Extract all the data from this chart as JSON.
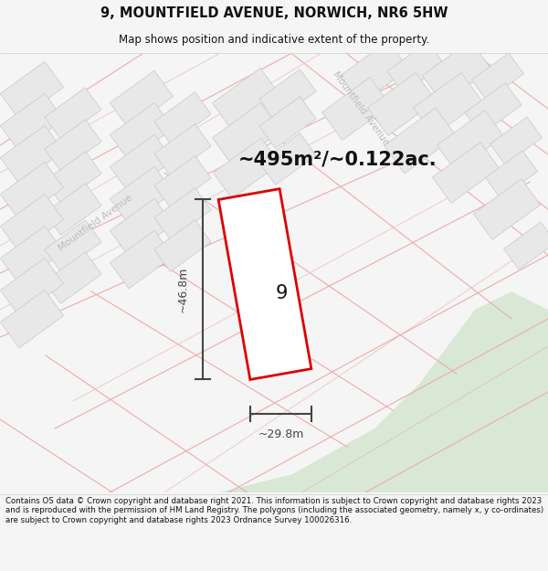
{
  "title_line1": "9, MOUNTFIELD AVENUE, NORWICH, NR6 5HW",
  "title_line2": "Map shows position and indicative extent of the property.",
  "area_text": "~495m²/~0.122ac.",
  "label_width": "~29.8m",
  "label_height": "~46.8m",
  "plot_number": "9",
  "footer_text": "Contains OS data © Crown copyright and database right 2021. This information is subject to Crown copyright and database rights 2023 and is reproduced with the permission of HM Land Registry. The polygons (including the associated geometry, namely x, y co-ordinates) are subject to Crown copyright and database rights 2023 Ordnance Survey 100026316.",
  "bg_color": "#f5f5f5",
  "map_bg": "#ffffff",
  "road_color": "#f0aaaa",
  "building_fill": "#e8e8e8",
  "building_edge": "#c8c8c8",
  "plot_color": "#dd0000",
  "plot_fill": "#ffffff",
  "green_color": "#d8e8d4",
  "dim_color": "#444444",
  "street_label_color": "#bbbbbb",
  "figsize": [
    6.0,
    6.25
  ],
  "dpi": 100
}
